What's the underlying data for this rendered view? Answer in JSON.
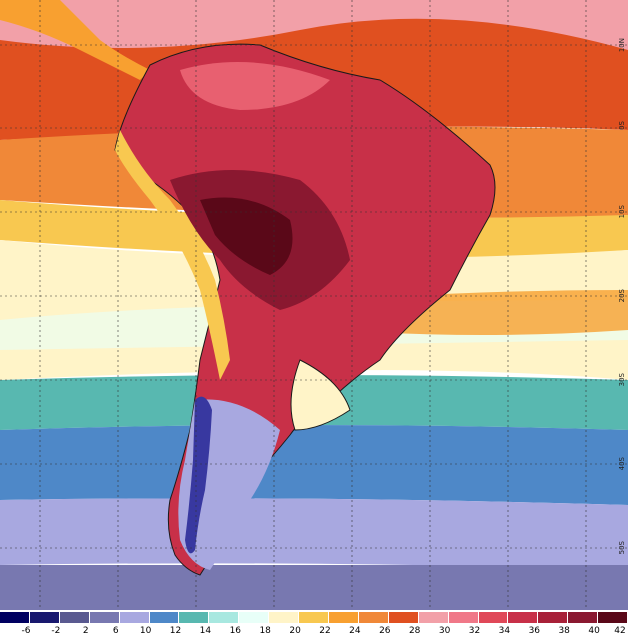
{
  "map": {
    "lat_labels": [
      "10N",
      "0S",
      "10S",
      "20S",
      "30S",
      "40S",
      "50S"
    ],
    "colors": {
      "ocean_equatorial": "#e05020",
      "ocean_north": "#f2a0a8",
      "ocean_mid": "#f08838",
      "ocean_subtrop": "#f8c850",
      "ocean_pale": "#fff4c8",
      "ocean_teal": "#58b8b0",
      "ocean_blue": "#4e88c8",
      "ocean_lav": "#a8a8e0",
      "ocean_south": "#7878b0",
      "land_hot": "#c83048",
      "land_veryhot": "#8a1830",
      "land_core": "#5a0818",
      "land_warm": "#e86070",
      "andes_cold": "#3838a0",
      "border": "#1a1a1a",
      "grid": "#333333"
    }
  },
  "legend": {
    "labels": [
      "-6",
      "-2",
      "2",
      "6",
      "10",
      "12",
      "14",
      "16",
      "18",
      "20",
      "22",
      "24",
      "26",
      "28",
      "30",
      "32",
      "34",
      "36",
      "38",
      "40",
      "42"
    ],
    "swatches": [
      "#000060",
      "#18186e",
      "#5a5a90",
      "#7878b0",
      "#a8a8e0",
      "#4e88c8",
      "#58b8b0",
      "#a8e8e0",
      "#e8fff8",
      "#fff4c8",
      "#f8c850",
      "#f8a030",
      "#f08838",
      "#e05020",
      "#f2a0a8",
      "#f07888",
      "#e04858",
      "#c83048",
      "#a82038",
      "#8a1830",
      "#5a0818"
    ]
  }
}
